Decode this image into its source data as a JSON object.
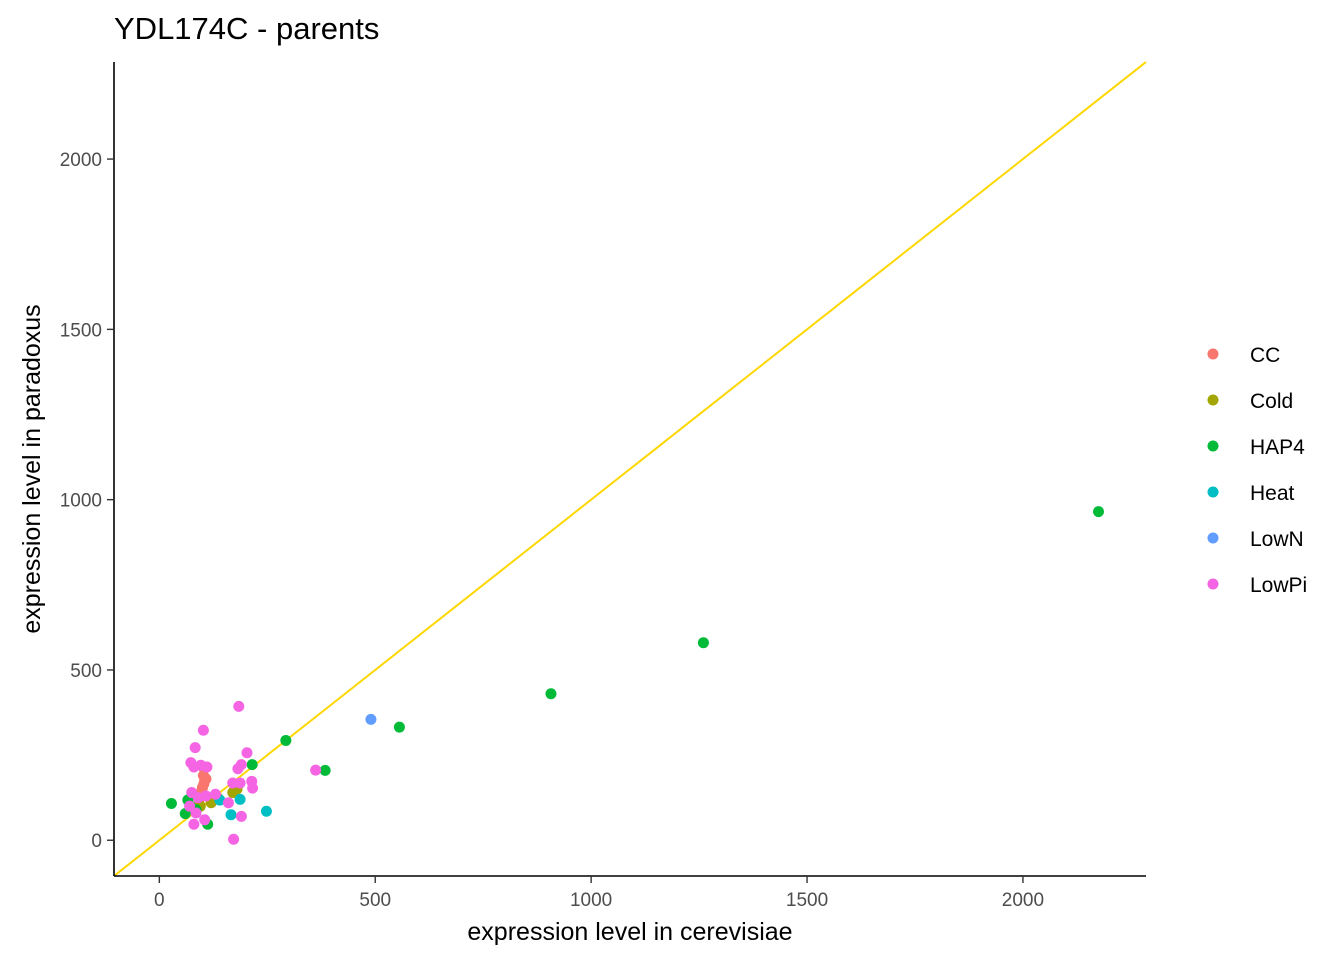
{
  "chart_data": {
    "type": "scatter",
    "title": "YDL174C - parents",
    "xlabel": "expression level in cerevisiae",
    "ylabel": "expression level in paradoxus",
    "xlim": [
      -105,
      2285
    ],
    "ylim": [
      -105,
      2285
    ],
    "x_ticks": [
      0,
      500,
      1000,
      1500,
      2000
    ],
    "y_ticks": [
      0,
      500,
      1000,
      1500,
      2000
    ],
    "grid": false,
    "legend_position": "right",
    "reference_line": {
      "type": "identity",
      "color": "#FFD700"
    },
    "series": [
      {
        "name": "CC",
        "color": "#F8766D",
        "points": [
          [
            100,
            155
          ],
          [
            103,
            165
          ],
          [
            105,
            175
          ],
          [
            108,
            180
          ],
          [
            98,
            145
          ],
          [
            95,
            130
          ],
          [
            102,
            190
          ],
          [
            104,
            210
          ],
          [
            92,
            120
          ],
          [
            110,
            215
          ]
        ]
      },
      {
        "name": "Cold",
        "color": "#A3A500",
        "points": [
          [
            175,
            145
          ],
          [
            170,
            140
          ],
          [
            135,
            125
          ],
          [
            120,
            110
          ],
          [
            95,
            100
          ],
          [
            180,
            150
          ]
        ]
      },
      {
        "name": "HAP4",
        "color": "#00BA38",
        "points": [
          [
            2175,
            965
          ],
          [
            1260,
            580
          ],
          [
            907,
            430
          ],
          [
            556,
            332
          ],
          [
            384,
            205
          ],
          [
            293,
            293
          ],
          [
            215,
            222
          ],
          [
            28,
            108
          ],
          [
            60,
            78
          ],
          [
            72,
            100
          ],
          [
            112,
            47
          ],
          [
            66,
            118
          ],
          [
            85,
            90
          ]
        ]
      },
      {
        "name": "Heat",
        "color": "#00BFC4",
        "points": [
          [
            248,
            85
          ],
          [
            166,
            75
          ],
          [
            187,
            120
          ],
          [
            140,
            118
          ]
        ]
      },
      {
        "name": "LowN",
        "color": "#619CFF",
        "points": [
          [
            490,
            355
          ]
        ]
      },
      {
        "name": "LowPi",
        "color": "#F564E3",
        "points": [
          [
            184,
            393
          ],
          [
            102,
            323
          ],
          [
            83,
            272
          ],
          [
            203,
            257
          ],
          [
            73,
            228
          ],
          [
            80,
            215
          ],
          [
            96,
            220
          ],
          [
            110,
            215
          ],
          [
            190,
            222
          ],
          [
            182,
            210
          ],
          [
            214,
            173
          ],
          [
            216,
            153
          ],
          [
            170,
            168
          ],
          [
            187,
            168
          ],
          [
            362,
            206
          ],
          [
            108,
            130
          ],
          [
            90,
            125
          ],
          [
            75,
            140
          ],
          [
            160,
            110
          ],
          [
            130,
            135
          ],
          [
            190,
            70
          ],
          [
            105,
            60
          ],
          [
            80,
            47
          ],
          [
            172,
            3
          ],
          [
            70,
            100
          ],
          [
            85,
            80
          ]
        ]
      }
    ]
  }
}
